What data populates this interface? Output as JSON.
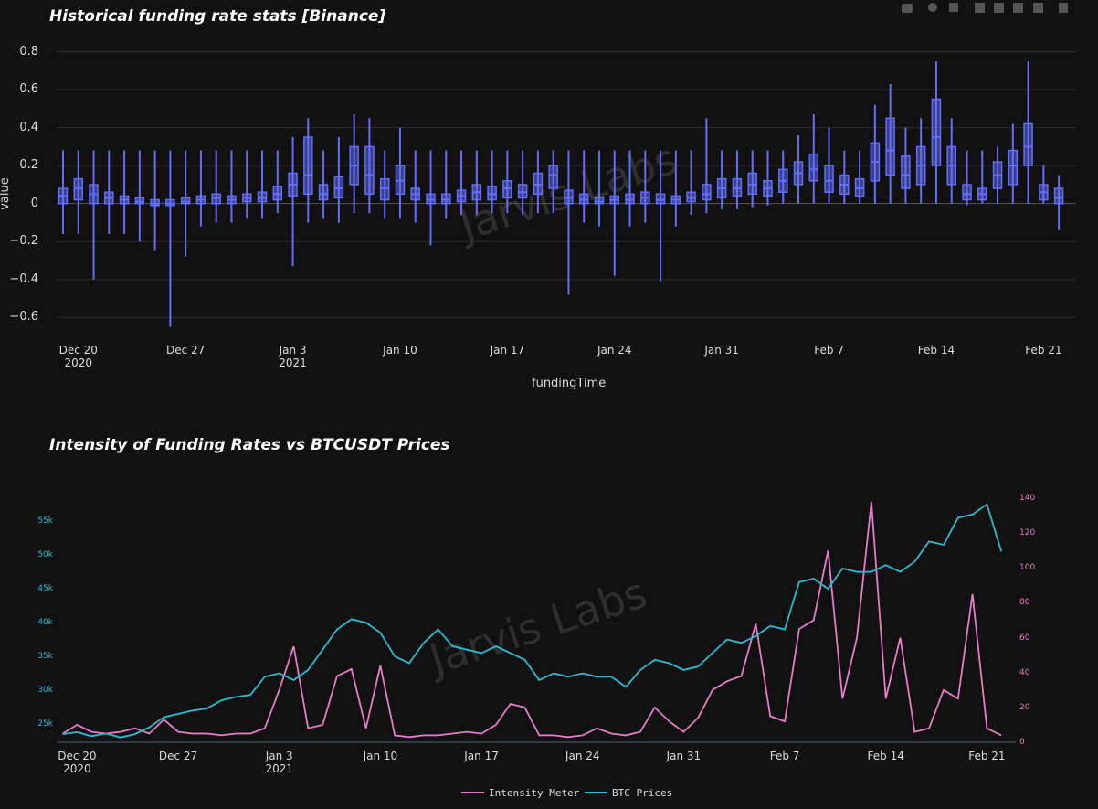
{
  "chart_data": [
    {
      "type": "box",
      "title": "Historical funding rate stats [Binance]",
      "xlabel": "fundingTime",
      "ylabel": "value",
      "watermark": "Jarvis Labs",
      "color": "#636efa",
      "grid": true,
      "x": [
        "2020-12-19",
        "2020-12-20",
        "2020-12-21",
        "2020-12-22",
        "2020-12-23",
        "2020-12-24",
        "2020-12-25",
        "2020-12-26",
        "2020-12-27",
        "2020-12-28",
        "2020-12-29",
        "2020-12-30",
        "2020-12-31",
        "2021-01-01",
        "2021-01-02",
        "2021-01-03",
        "2021-01-04",
        "2021-01-05",
        "2021-01-06",
        "2021-01-07",
        "2021-01-08",
        "2021-01-09",
        "2021-01-10",
        "2021-01-11",
        "2021-01-12",
        "2021-01-13",
        "2021-01-14",
        "2021-01-15",
        "2021-01-16",
        "2021-01-17",
        "2021-01-18",
        "2021-01-19",
        "2021-01-20",
        "2021-01-21",
        "2021-01-22",
        "2021-01-23",
        "2021-01-24",
        "2021-01-25",
        "2021-01-26",
        "2021-01-27",
        "2021-01-28",
        "2021-01-29",
        "2021-01-30",
        "2021-01-31",
        "2021-02-01",
        "2021-02-02",
        "2021-02-03",
        "2021-02-04",
        "2021-02-05",
        "2021-02-06",
        "2021-02-07",
        "2021-02-08",
        "2021-02-09",
        "2021-02-10",
        "2021-02-11",
        "2021-02-12",
        "2021-02-13",
        "2021-02-14",
        "2021-02-15",
        "2021-02-16",
        "2021-02-17",
        "2021-02-18",
        "2021-02-19",
        "2021-02-20",
        "2021-02-21",
        "2021-02-22"
      ],
      "boxes": [
        [
          -0.16,
          0.0,
          0.04,
          0.08,
          0.28
        ],
        [
          -0.16,
          0.02,
          0.08,
          0.13,
          0.28
        ],
        [
          -0.4,
          0.0,
          0.05,
          0.1,
          0.28
        ],
        [
          -0.16,
          0.0,
          0.03,
          0.06,
          0.28
        ],
        [
          -0.16,
          0.0,
          0.02,
          0.04,
          0.28
        ],
        [
          -0.2,
          0.0,
          0.01,
          0.03,
          0.28
        ],
        [
          -0.25,
          -0.01,
          0.0,
          0.02,
          0.28
        ],
        [
          -0.65,
          -0.01,
          0.0,
          0.02,
          0.28
        ],
        [
          -0.28,
          0.0,
          0.01,
          0.03,
          0.28
        ],
        [
          -0.12,
          0.0,
          0.02,
          0.04,
          0.28
        ],
        [
          -0.1,
          0.0,
          0.03,
          0.05,
          0.28
        ],
        [
          -0.1,
          0.0,
          0.02,
          0.04,
          0.28
        ],
        [
          -0.08,
          0.01,
          0.03,
          0.05,
          0.28
        ],
        [
          -0.08,
          0.01,
          0.03,
          0.06,
          0.28
        ],
        [
          -0.05,
          0.02,
          0.05,
          0.09,
          0.28
        ],
        [
          -0.33,
          0.04,
          0.1,
          0.16,
          0.35
        ],
        [
          -0.1,
          0.05,
          0.15,
          0.35,
          0.45
        ],
        [
          -0.08,
          0.02,
          0.05,
          0.1,
          0.28
        ],
        [
          -0.1,
          0.03,
          0.08,
          0.14,
          0.35
        ],
        [
          -0.05,
          0.1,
          0.2,
          0.3,
          0.47
        ],
        [
          -0.05,
          0.05,
          0.15,
          0.3,
          0.45
        ],
        [
          -0.08,
          0.02,
          0.08,
          0.13,
          0.28
        ],
        [
          -0.08,
          0.05,
          0.12,
          0.2,
          0.4
        ],
        [
          -0.1,
          0.02,
          0.05,
          0.08,
          0.28
        ],
        [
          -0.22,
          0.0,
          0.02,
          0.05,
          0.28
        ],
        [
          -0.08,
          0.0,
          0.02,
          0.05,
          0.28
        ],
        [
          -0.06,
          0.01,
          0.04,
          0.07,
          0.28
        ],
        [
          -0.06,
          0.02,
          0.06,
          0.1,
          0.28
        ],
        [
          -0.05,
          0.02,
          0.05,
          0.09,
          0.28
        ],
        [
          -0.05,
          0.03,
          0.08,
          0.12,
          0.28
        ],
        [
          -0.06,
          0.03,
          0.06,
          0.1,
          0.28
        ],
        [
          -0.05,
          0.05,
          0.1,
          0.16,
          0.28
        ],
        [
          -0.05,
          0.08,
          0.15,
          0.2,
          0.28
        ],
        [
          -0.48,
          0.0,
          0.03,
          0.07,
          0.28
        ],
        [
          -0.1,
          0.0,
          0.02,
          0.05,
          0.28
        ],
        [
          -0.12,
          0.0,
          0.01,
          0.03,
          0.28
        ],
        [
          -0.38,
          0.0,
          0.02,
          0.04,
          0.28
        ],
        [
          -0.12,
          0.0,
          0.02,
          0.05,
          0.28
        ],
        [
          -0.1,
          0.0,
          0.03,
          0.06,
          0.28
        ],
        [
          -0.41,
          0.0,
          0.02,
          0.05,
          0.28
        ],
        [
          -0.12,
          0.0,
          0.02,
          0.04,
          0.28
        ],
        [
          -0.06,
          0.01,
          0.03,
          0.06,
          0.28
        ],
        [
          -0.05,
          0.02,
          0.05,
          0.1,
          0.45
        ],
        [
          -0.03,
          0.03,
          0.08,
          0.13,
          0.28
        ],
        [
          -0.03,
          0.04,
          0.08,
          0.13,
          0.28
        ],
        [
          -0.02,
          0.05,
          0.1,
          0.16,
          0.28
        ],
        [
          -0.01,
          0.04,
          0.08,
          0.12,
          0.28
        ],
        [
          0.0,
          0.06,
          0.12,
          0.18,
          0.28
        ],
        [
          0.0,
          0.1,
          0.16,
          0.22,
          0.36
        ],
        [
          0.0,
          0.12,
          0.18,
          0.26,
          0.47
        ],
        [
          0.0,
          0.06,
          0.12,
          0.2,
          0.4
        ],
        [
          0.0,
          0.05,
          0.1,
          0.15,
          0.28
        ],
        [
          0.0,
          0.04,
          0.08,
          0.13,
          0.28
        ],
        [
          0.0,
          0.12,
          0.22,
          0.32,
          0.52
        ],
        [
          0.0,
          0.15,
          0.28,
          0.45,
          0.63
        ],
        [
          0.0,
          0.08,
          0.15,
          0.25,
          0.4
        ],
        [
          0.0,
          0.1,
          0.2,
          0.3,
          0.45
        ],
        [
          0.0,
          0.2,
          0.35,
          0.55,
          0.75
        ],
        [
          0.0,
          0.1,
          0.2,
          0.3,
          0.45
        ],
        [
          -0.01,
          0.02,
          0.05,
          0.1,
          0.28
        ],
        [
          0.0,
          0.02,
          0.05,
          0.08,
          0.28
        ],
        [
          0.0,
          0.08,
          0.15,
          0.22,
          0.3
        ],
        [
          0.0,
          0.1,
          0.2,
          0.28,
          0.42
        ],
        [
          0.0,
          0.2,
          0.3,
          0.42,
          0.75
        ],
        [
          0.0,
          0.02,
          0.06,
          0.1,
          0.2
        ],
        [
          -0.14,
          0.0,
          0.03,
          0.08,
          0.15
        ]
      ],
      "xlim": [
        "2020-12-18T14:00",
        "2021-02-23T03:00"
      ],
      "xticks": [
        {
          "value": "2020-12-20",
          "label": "Dec 20\n2020"
        },
        {
          "value": "2020-12-27",
          "label": "Dec 27"
        },
        {
          "value": "2021-01-03",
          "label": "Jan 3\n2021"
        },
        {
          "value": "2021-01-10",
          "label": "Jan 10"
        },
        {
          "value": "2021-01-17",
          "label": "Jan 17"
        },
        {
          "value": "2021-01-24",
          "label": "Jan 24"
        },
        {
          "value": "2021-01-31",
          "label": "Jan 31"
        },
        {
          "value": "2021-02-07",
          "label": "Feb 7"
        },
        {
          "value": "2021-02-14",
          "label": "Feb 14"
        },
        {
          "value": "2021-02-21",
          "label": "Feb 21"
        }
      ],
      "ylim": [
        -0.7,
        0.88
      ],
      "yticks": [
        {
          "value": -0.6,
          "label": "−0.6"
        },
        {
          "value": -0.4,
          "label": "−0.4"
        },
        {
          "value": -0.2,
          "label": "−0.2"
        },
        0,
        0.2,
        0.4,
        0.6,
        0.8
      ]
    },
    {
      "type": "line",
      "title": "Intensity of Funding Rates vs BTCUSDT Prices",
      "watermark": "Jarvis Labs",
      "legend": "bottom",
      "x": [
        "2020-12-19",
        "2020-12-20",
        "2020-12-21",
        "2020-12-22",
        "2020-12-23",
        "2020-12-24",
        "2020-12-25",
        "2020-12-26",
        "2020-12-27",
        "2020-12-28",
        "2020-12-29",
        "2020-12-30",
        "2020-12-31",
        "2021-01-01",
        "2021-01-02",
        "2021-01-03",
        "2021-01-04",
        "2021-01-05",
        "2021-01-06",
        "2021-01-07",
        "2021-01-08",
        "2021-01-09",
        "2021-01-10",
        "2021-01-11",
        "2021-01-12",
        "2021-01-13",
        "2021-01-14",
        "2021-01-15",
        "2021-01-16",
        "2021-01-17",
        "2021-01-18",
        "2021-01-19",
        "2021-01-20",
        "2021-01-21",
        "2021-01-22",
        "2021-01-23",
        "2021-01-24",
        "2021-01-25",
        "2021-01-26",
        "2021-01-27",
        "2021-01-28",
        "2021-01-29",
        "2021-01-30",
        "2021-01-31",
        "2021-02-01",
        "2021-02-02",
        "2021-02-03",
        "2021-02-04",
        "2021-02-05",
        "2021-02-06",
        "2021-02-07",
        "2021-02-08",
        "2021-02-09",
        "2021-02-10",
        "2021-02-11",
        "2021-02-12",
        "2021-02-13",
        "2021-02-14",
        "2021-02-15",
        "2021-02-16",
        "2021-02-17",
        "2021-02-18",
        "2021-02-19",
        "2021-02-20",
        "2021-02-21",
        "2021-02-22"
      ],
      "series": [
        {
          "name": "Intensity Meter",
          "color": "#e87cc8",
          "axis": "y2",
          "values": [
            5,
            10,
            6,
            5,
            6,
            8,
            5,
            13,
            6,
            5,
            5,
            4,
            5,
            5,
            8,
            30,
            55,
            8,
            10,
            38,
            42,
            8,
            44,
            4,
            3,
            4,
            4,
            5,
            6,
            5,
            10,
            22,
            20,
            4,
            4,
            3,
            4,
            8,
            5,
            4,
            6,
            20,
            12,
            6,
            14,
            30,
            35,
            38,
            68,
            15,
            12,
            65,
            70,
            110,
            25,
            60,
            138,
            25,
            60,
            6,
            8,
            30,
            25,
            85,
            8,
            4
          ]
        },
        {
          "name": "BTC Prices",
          "color": "#2bbcd4",
          "values": [
            23500,
            23800,
            23200,
            23600,
            23000,
            23500,
            24500,
            26000,
            26500,
            27000,
            27300,
            28500,
            29000,
            29300,
            32000,
            32500,
            31500,
            33000,
            36000,
            39000,
            40500,
            40000,
            38500,
            35000,
            34000,
            37000,
            39000,
            36500,
            36000,
            35500,
            36500,
            35500,
            34500,
            31500,
            32500,
            32000,
            32500,
            32000,
            32000,
            30500,
            33000,
            34500,
            34000,
            33000,
            33500,
            35500,
            37500,
            37000,
            38000,
            39500,
            39000,
            46000,
            46500,
            45000,
            48000,
            47500,
            47500,
            48500,
            47500,
            49000,
            52000,
            51500,
            55500,
            56000,
            57500,
            50500
          ]
        }
      ],
      "xlim": [
        "2020-12-18T14:00",
        "2021-02-23T00:00"
      ],
      "xticks": [
        {
          "value": "2020-12-20",
          "label": "Dec 20\n2020"
        },
        {
          "value": "2020-12-27",
          "label": "Dec 27"
        },
        {
          "value": "2021-01-03",
          "label": "Jan 3\n2021"
        },
        {
          "value": "2021-01-10",
          "label": "Jan 10"
        },
        {
          "value": "2021-01-17",
          "label": "Jan 17"
        },
        {
          "value": "2021-01-24",
          "label": "Jan 24"
        },
        {
          "value": "2021-01-31",
          "label": "Jan 31"
        },
        {
          "value": "2021-02-07",
          "label": "Feb 7"
        },
        {
          "value": "2021-02-14",
          "label": "Feb 14"
        },
        {
          "value": "2021-02-21",
          "label": "Feb 21"
        }
      ],
      "ylim": [
        22300,
        58400
      ],
      "yticks": [
        {
          "value": 25000,
          "label": "25k"
        },
        {
          "value": 30000,
          "label": "30k"
        },
        {
          "value": 35000,
          "label": "35k"
        },
        {
          "value": 40000,
          "label": "40k"
        },
        {
          "value": 45000,
          "label": "45k"
        },
        {
          "value": 50000,
          "label": "50k"
        },
        {
          "value": 55000,
          "label": "55k"
        }
      ],
      "y2lim": [
        0,
        140
      ],
      "y2ticks": [
        0,
        20,
        40,
        60,
        80,
        100,
        120,
        140
      ]
    }
  ]
}
